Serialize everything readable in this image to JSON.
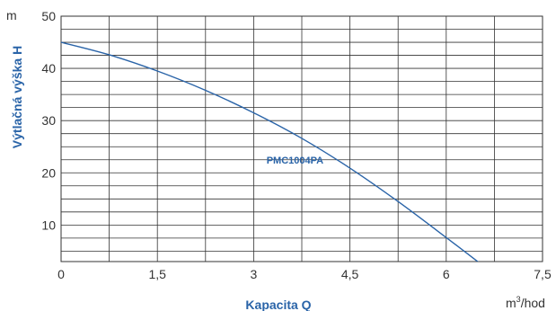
{
  "chart_data": {
    "type": "line",
    "xlabel": "Kapacita Q",
    "ylabel": "Výtlačná výška H",
    "x_unit_base": "m",
    "x_unit_sup": "3",
    "x_unit_rest": "/hod",
    "y_unit": "m",
    "xlim": [
      0,
      7.5
    ],
    "ylim": [
      3,
      50
    ],
    "x_ticks": [
      "0",
      "1,5",
      "3",
      "4,5",
      "6",
      "7,5"
    ],
    "y_ticks": [
      "10",
      "20",
      "30",
      "40",
      "50"
    ],
    "grid": true,
    "series": [
      {
        "name": "PMC1004PA",
        "color": "#2a64a8",
        "x": [
          0,
          0.75,
          1.5,
          2.25,
          3,
          3.75,
          4.5,
          5.25,
          6,
          6.5
        ],
        "y": [
          45,
          42.6,
          39.5,
          35.8,
          31.5,
          26.6,
          20.9,
          14.5,
          7.6,
          2.9
        ]
      }
    ]
  }
}
